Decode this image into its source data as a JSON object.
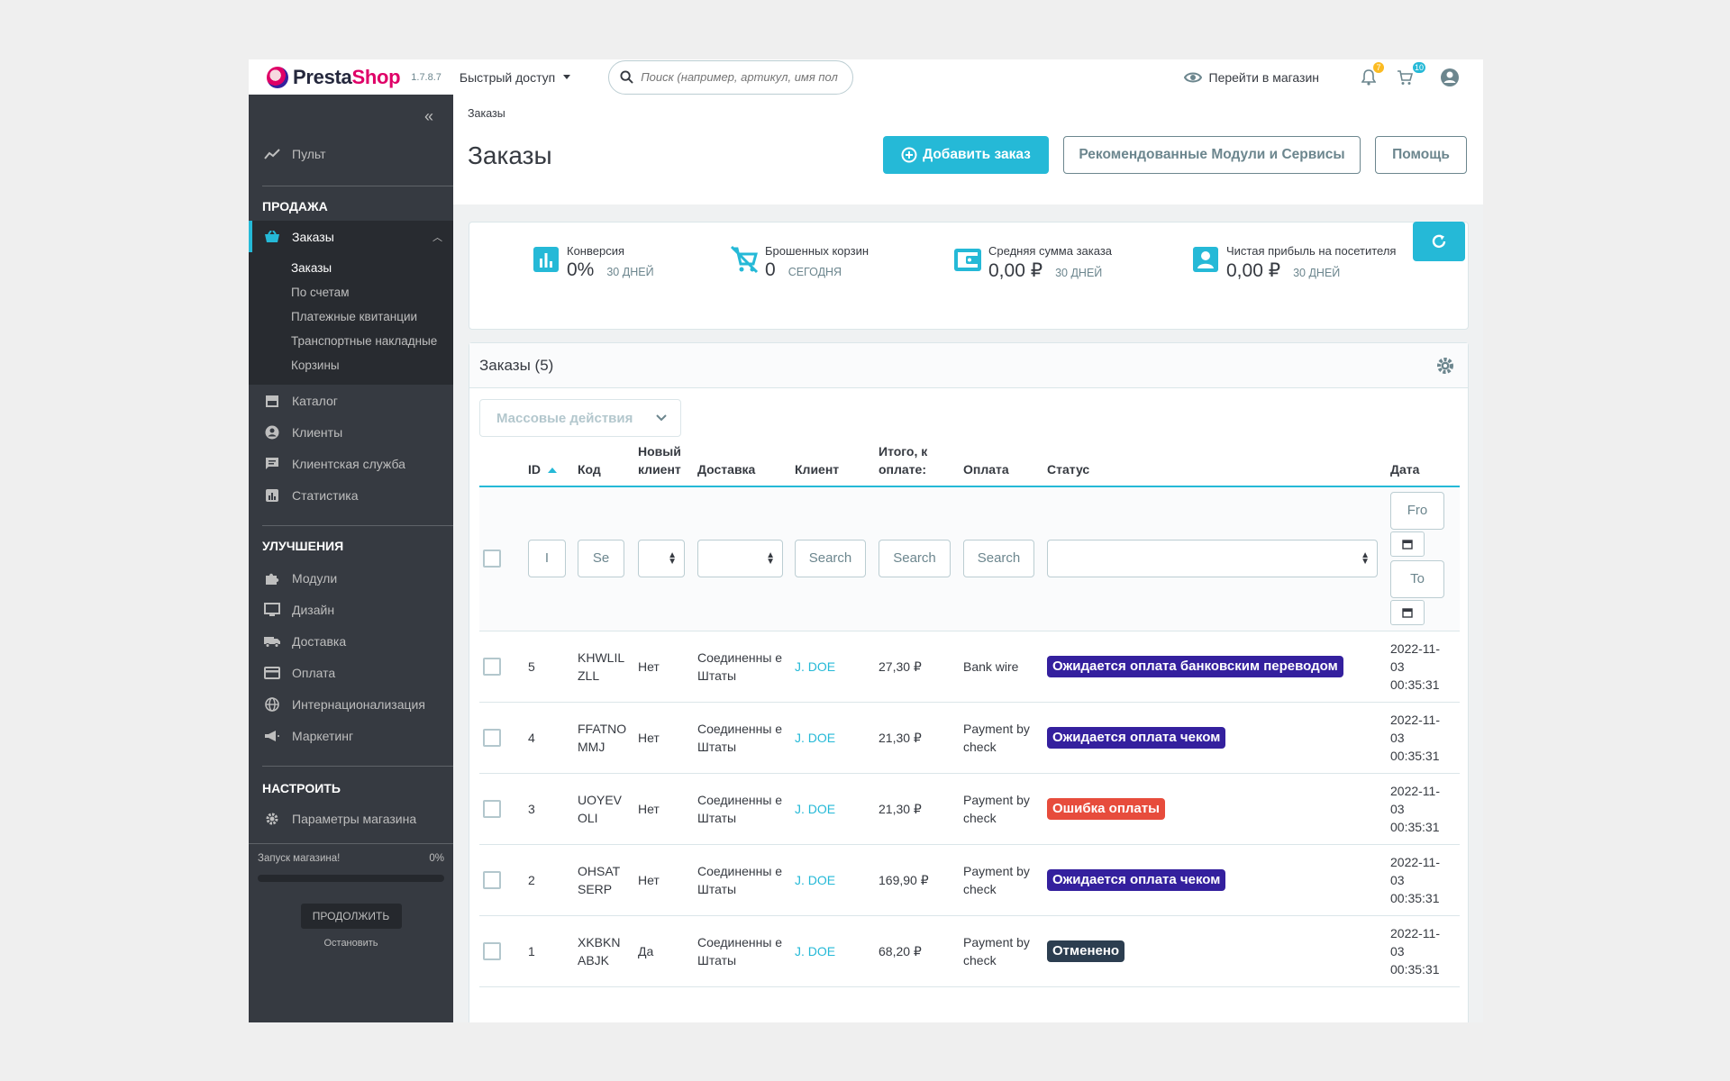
{
  "header": {
    "brand_a": "Presta",
    "brand_b": "Shop",
    "version": "1.7.8.7",
    "quick_access": "Быстрый доступ",
    "search_placeholder": "Поиск (например, артикул, имя пол",
    "view_shop": "Перейти в магазин",
    "notif_count": "7",
    "orders_count": "10"
  },
  "sidebar": {
    "dashboard": "Пульт",
    "sell_title": "Продажа",
    "orders": "Заказы",
    "orders_sub": [
      "Заказы",
      "По счетам",
      "Платежные квитанции",
      "Транспортные накладные",
      "Корзины"
    ],
    "sell_items": [
      "Каталог",
      "Клиенты",
      "Клиентская служба",
      "Статистика"
    ],
    "improve_title": "Улучшения",
    "improve_items": [
      "Модули",
      "Дизайн",
      "Доставка",
      "Оплата",
      "Интернационализация",
      "Маркетинг"
    ],
    "configure_title": "Настроить",
    "configure_items": [
      "Параметры магазина"
    ],
    "launch_label": "Запуск магазина!",
    "launch_pct": "0%",
    "launch_progress": 0,
    "continue_btn": "ПРОДОЛЖИТЬ",
    "stop_link": "Остановить"
  },
  "toolbar": {
    "breadcrumb": "Заказы",
    "title": "Заказы",
    "add_order": "Добавить заказ",
    "recommended": "Рекомендованные Модули и Сервисы",
    "help": "Помощь"
  },
  "kpis": [
    {
      "label": "Конверсия",
      "value": "0%",
      "period": "30 ДНЕЙ",
      "icon": "chart-bar-icon"
    },
    {
      "label": "Брошенных корзин",
      "value": "0",
      "period": "СЕГОДНЯ",
      "icon": "remove-cart-icon"
    },
    {
      "label": "Средняя сумма заказа",
      "value": "0,00 ₽",
      "period": "30 ДНЕЙ",
      "icon": "wallet-icon"
    },
    {
      "label": "Чистая прибыль на посетителя",
      "value": "0,00 ₽",
      "period": "30 ДНЕЙ",
      "icon": "user-icon"
    }
  ],
  "grid": {
    "title": "Заказы (5)",
    "bulk_actions": "Массовые действия",
    "columns": [
      "ID",
      "Код",
      "Новый клиент",
      "Доставка",
      "Клиент",
      "Итого, к оплате:",
      "Оплата",
      "Статус",
      "Дата"
    ],
    "filters": {
      "id": "I",
      "code": "Se",
      "customer": "Search",
      "total": "Search",
      "payment": "Search",
      "date_from": "Fro",
      "date_to": "To"
    },
    "rows": [
      {
        "id": "5",
        "code": "KHWLIL ZLL",
        "new": "Нет",
        "delivery": "Соединенны е Штаты",
        "customer": "J. DOE",
        "total": "27,30 ₽",
        "payment": "Bank wire",
        "status": "Ожидается оплата банковским переводом",
        "status_color": "#34209e",
        "date": "2022-11- 03 00:35:31"
      },
      {
        "id": "4",
        "code": "FFATNO MMJ",
        "new": "Нет",
        "delivery": "Соединенны е Штаты",
        "customer": "J. DOE",
        "total": "21,30 ₽",
        "payment": "Payment by check",
        "status": "Ожидается оплата чеком",
        "status_color": "#34209e",
        "date": "2022-11- 03 00:35:31"
      },
      {
        "id": "3",
        "code": "UOYEV OLI",
        "new": "Нет",
        "delivery": "Соединенны е Штаты",
        "customer": "J. DOE",
        "total": "21,30 ₽",
        "payment": "Payment by check",
        "status": "Ошибка оплаты",
        "status_color": "#e74c3c",
        "date": "2022-11- 03 00:35:31"
      },
      {
        "id": "2",
        "code": "OHSAT SERP",
        "new": "Нет",
        "delivery": "Соединенны е Штаты",
        "customer": "J. DOE",
        "total": "169,90 ₽",
        "payment": "Payment by check",
        "status": "Ожидается оплата чеком",
        "status_color": "#34209e",
        "date": "2022-11- 03 00:35:31"
      },
      {
        "id": "1",
        "code": "XKBKN ABJK",
        "new": "Да",
        "delivery": "Соединенны е Штаты",
        "customer": "J. DOE",
        "total": "68,20 ₽",
        "payment": "Payment by check",
        "status": "Отменено",
        "status_color": "#2c3e50",
        "date": "2022-11- 03 00:35:31"
      }
    ]
  }
}
